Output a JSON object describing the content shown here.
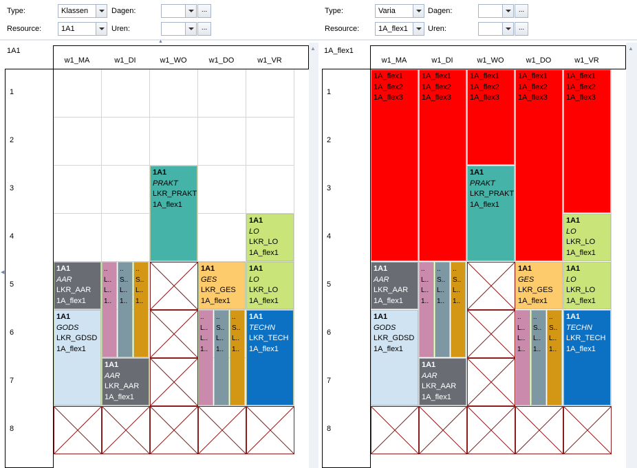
{
  "left": {
    "type_label": "Type:",
    "type_value": "Klassen",
    "resource_label": "Resource:",
    "resource_value": "1A1",
    "dagen_label": "Dagen:",
    "uren_label": "Uren:",
    "dots": "...",
    "title": "1A1",
    "days": [
      "w1_MA",
      "w1_DI",
      "w1_WO",
      "w1_DO",
      "w1_VR"
    ],
    "hours": [
      "1",
      "2",
      "3",
      "4",
      "5",
      "6",
      "7",
      "8"
    ],
    "blocks": [
      {
        "l1": "1A1",
        "l2": "PRAKT",
        "l3": "LKR_PRAKT",
        "l4": "1A_flex1"
      },
      {
        "l1": "1A1",
        "l2": "LO",
        "l3": "LKR_LO",
        "l4": "1A_flex1"
      },
      {
        "l1": "1A1",
        "l2": "AAR",
        "l3": "LKR_AAR",
        "l4": "1A_flex1"
      },
      {
        "l1": "1A1",
        "l2": "GES",
        "l3": "LKR_GES",
        "l4": "1A_flex1"
      },
      {
        "l1": "1A1",
        "l2": "LO",
        "l3": "LKR_LO",
        "l4": "1A_flex1"
      },
      {
        "l1": "1A1",
        "l2": "GODS",
        "l3": "LKR_GDSD",
        "l4": "1A_flex1"
      },
      {
        "l1": "1A1",
        "l2": "TECHN",
        "l3": "LKR_TECH",
        "l4": "1A_flex1"
      },
      {
        "l1": "1A1",
        "l2": "AAR",
        "l3": "LKR_AAR",
        "l4": "1A_flex1"
      }
    ],
    "narrow_a": {
      "l1": "..",
      "l2": "L..",
      "l3": "L..",
      "l4": "1.."
    },
    "narrow_b": {
      "l1": "..",
      "l2": "S..",
      "l3": "L..",
      "l4": "1.."
    }
  },
  "right": {
    "type_label": "Type:",
    "type_value": "Varia",
    "resource_label": "Resource:",
    "resource_value": "1A_flex1",
    "dagen_label": "Dagen:",
    "uren_label": "Uren:",
    "dots": "...",
    "title": "1A_flex1",
    "days": [
      "w1_MA",
      "w1_DI",
      "w1_WO",
      "w1_DO",
      "w1_VR"
    ],
    "hours": [
      "1",
      "2",
      "3",
      "4",
      "5",
      "6",
      "7",
      "8"
    ],
    "flex": {
      "l1": "1A_flex1",
      "l2": "1A_flex2",
      "l3": "1A_flex3"
    },
    "blocks": [
      {
        "l1": "1A1",
        "l2": "PRAKT",
        "l3": "LKR_PRAKT",
        "l4": "1A_flex1"
      },
      {
        "l1": "1A1",
        "l2": "LO",
        "l3": "LKR_LO",
        "l4": "1A_flex1"
      },
      {
        "l1": "1A1",
        "l2": "AAR",
        "l3": "LKR_AAR",
        "l4": "1A_flex1"
      },
      {
        "l1": "1A1",
        "l2": "GES",
        "l3": "LKR_GES",
        "l4": "1A_flex1"
      },
      {
        "l1": "1A1",
        "l2": "LO",
        "l3": "LKR_LO",
        "l4": "1A_flex1"
      },
      {
        "l1": "1A1",
        "l2": "GODS",
        "l3": "LKR_GDSD",
        "l4": "1A_flex1"
      },
      {
        "l1": "1A1",
        "l2": "TECHN",
        "l3": "LKR_TECH",
        "l4": "1A_flex1"
      },
      {
        "l1": "1A1",
        "l2": "AAR",
        "l3": "LKR_AAR",
        "l4": "1A_flex1"
      }
    ]
  },
  "colors": {
    "teal": "#45b3a8",
    "lime": "#c9e57a",
    "gray": "#696c73",
    "orange": "#fdcb6c",
    "lightblue": "#cfe3f3",
    "blue": "#0c71c3",
    "pink": "#c98aab",
    "slate": "#7d98a3",
    "gold": "#d49715",
    "red": "#ff0000",
    "xline": "#8b1c1c"
  }
}
